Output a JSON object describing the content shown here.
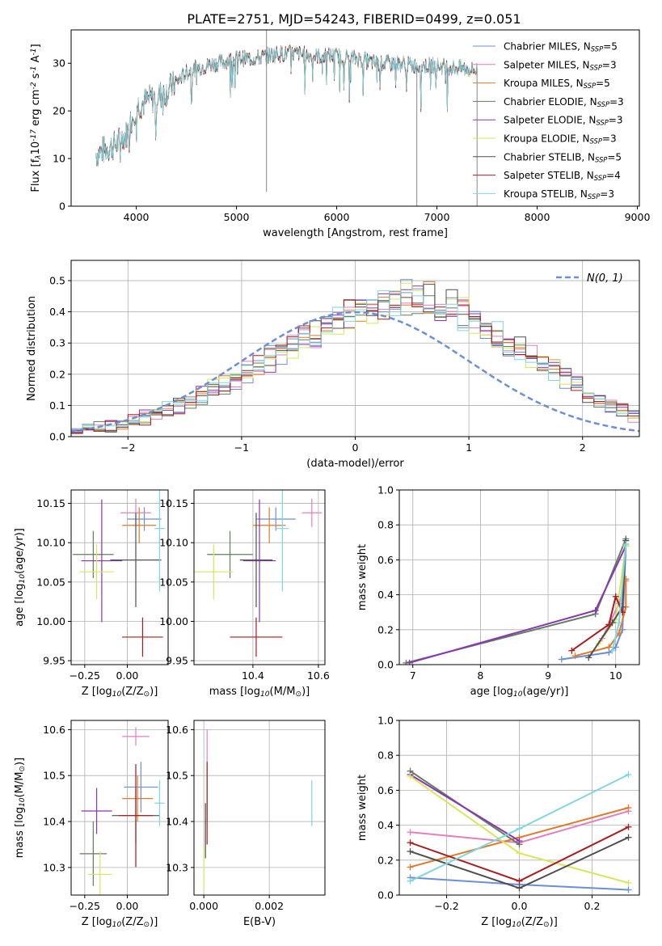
{
  "figure_title": "PLATE=2751, MJD=54243, FIBERID=0499, z=0.051",
  "legend_spectrum": [
    {
      "text": "Chabrier MILES, N$_{SSP}$=5",
      "color": "#6b8fd6"
    },
    {
      "text": "Salpeter MILES, N$_{SSP}$=3",
      "color": "#e37fbf"
    },
    {
      "text": "Kroupa MILES, N$_{SSP}$=5",
      "color": "#e07a2a"
    },
    {
      "text": "Chabrier ELODIE, N$_{SSP}$=3",
      "color": "#5f7f5f"
    },
    {
      "text": "Salpeter ELODIE, N$_{SSP}$=3",
      "color": "#8b35b5"
    },
    {
      "text": "Kroupa ELODIE, N$_{SSP}$=3",
      "color": "#d8e65a"
    },
    {
      "text": "Chabrier STELIB, N$_{SSP}$=5",
      "color": "#4f4f4f"
    },
    {
      "text": "Salpeter STELIB, N$_{SSP}$=4",
      "color": "#a81c1c"
    },
    {
      "text": "Kroupa STELIB, N$_{SSP}$=3",
      "color": "#7fd6e0"
    }
  ],
  "colors": {
    "series": [
      "#6b8fd6",
      "#e37fbf",
      "#e07a2a",
      "#5f7f5f",
      "#8b35b5",
      "#d8e65a",
      "#4f4f4f",
      "#a81c1c",
      "#7fd6e0"
    ],
    "grid": "#b0b0b0",
    "normal_curve": "#6b8fd6"
  },
  "chart_data": [
    {
      "id": "spectrum",
      "type": "line",
      "title": "PLATE=2751, MJD=54243, FIBERID=0499, z=0.051",
      "xlabel": "wavelength [Angstrom, rest frame]",
      "ylabel": "Flux [f$_\\lambda$10$^{-17}$ erg cm$^{-2}$ s$^{-1}$ A$^{-1}$]",
      "xlim": [
        3350,
        9020
      ],
      "ylim": [
        0,
        37
      ],
      "xticks": [
        4000,
        5000,
        6000,
        7000,
        8000,
        9000
      ],
      "yticks": [
        0,
        10,
        20,
        30
      ],
      "continuum": {
        "x": [
          3600,
          3700,
          3800,
          3900,
          4000,
          4100,
          4200,
          4300,
          4400,
          4500,
          4600,
          4800,
          5000,
          5200,
          5400,
          5600,
          5800,
          6000,
          6200,
          6400,
          6600,
          6800,
          7000,
          7200,
          7400
        ],
        "y": [
          11,
          12,
          13,
          15,
          21,
          22,
          23,
          24,
          26,
          28,
          29,
          30,
          31,
          31,
          32,
          32,
          31.5,
          31.5,
          31,
          30,
          30,
          29.5,
          29.5,
          29,
          28.5
        ]
      },
      "spikes": [
        {
          "x": 5300,
          "y": [
            3,
            37
          ]
        },
        {
          "x": 6800,
          "y": [
            0,
            29
          ]
        },
        {
          "x": 7400,
          "y": [
            0,
            29
          ]
        }
      ],
      "grid": false,
      "legend": "upper right"
    },
    {
      "id": "residual_hist",
      "type": "line",
      "xlabel": "(data-model)/error",
      "ylabel": "Normed distribution",
      "xlim": [
        -2.5,
        2.5
      ],
      "ylim": [
        0,
        0.565
      ],
      "xticks": [
        -2,
        -1,
        0,
        1,
        2
      ],
      "yticks": [
        0.0,
        0.1,
        0.2,
        0.3,
        0.4,
        0.5
      ],
      "bin_start": -2.5,
      "bin_width": 0.1,
      "base_hist": [
        0.02,
        0.025,
        0.03,
        0.035,
        0.04,
        0.05,
        0.06,
        0.07,
        0.09,
        0.1,
        0.11,
        0.13,
        0.15,
        0.17,
        0.19,
        0.21,
        0.23,
        0.25,
        0.27,
        0.29,
        0.31,
        0.33,
        0.35,
        0.37,
        0.39,
        0.4,
        0.41,
        0.42,
        0.43,
        0.44,
        0.44,
        0.43,
        0.42,
        0.41,
        0.4,
        0.38,
        0.35,
        0.32,
        0.3,
        0.28,
        0.26,
        0.24,
        0.22,
        0.19,
        0.17,
        0.14,
        0.12,
        0.1,
        0.08,
        0.07
      ],
      "normal_label": "$\\mathcal{N}(0, 1)$",
      "grid": true,
      "legend": "upper right"
    },
    {
      "id": "age_vs_Z",
      "type": "scatter",
      "xlabel": "Z [log$_{10}$(Z/Z$_\\odot$)]",
      "ylabel": "age  [log$_{10}$(age/yr)]",
      "xlim": [
        -0.33,
        0.24
      ],
      "ylim": [
        9.945,
        10.167
      ],
      "xticks": [
        -0.25,
        0.0
      ],
      "yticks": [
        9.95,
        10.0,
        10.05,
        10.1,
        10.15
      ],
      "points": [
        {
          "x": 0.1,
          "y": 10.13,
          "xerr": 0.1,
          "yerr": 0.015,
          "color": "#6b8fd6"
        },
        {
          "x": 0.05,
          "y": 10.138,
          "xerr": 0.09,
          "yerr": 0.018,
          "color": "#e37fbf"
        },
        {
          "x": 0.07,
          "y": 10.122,
          "xerr": 0.1,
          "yerr": 0.023,
          "color": "#e07a2a"
        },
        {
          "x": -0.2,
          "y": 10.085,
          "xerr": 0.12,
          "yerr": 0.03,
          "color": "#5f7f5f"
        },
        {
          "x": -0.15,
          "y": 10.077,
          "xerr": 0.12,
          "yerr": 0.078,
          "color": "#8b35b5"
        },
        {
          "x": -0.18,
          "y": 10.063,
          "xerr": 0.1,
          "yerr": 0.035,
          "color": "#d8e65a"
        },
        {
          "x": 0.05,
          "y": 10.078,
          "xerr": 0.15,
          "yerr": 0.06,
          "color": "#4f4f4f"
        },
        {
          "x": 0.09,
          "y": 9.98,
          "xerr": 0.12,
          "yerr": 0.025,
          "color": "#a81c1c"
        },
        {
          "x": 0.19,
          "y": 10.118,
          "xerr": 0.03,
          "yerr": 0.08,
          "color": "#7fd6e0"
        }
      ],
      "grid": true
    },
    {
      "id": "age_vs_mass",
      "type": "scatter",
      "xlabel": "mass [log$_{10}$(M/M$_\\odot$)]",
      "ylabel": "",
      "xlim": [
        10.22,
        10.62
      ],
      "ylim": [
        9.945,
        10.167
      ],
      "xticks": [
        10.4,
        10.6
      ],
      "yticks": [
        9.95,
        10.0,
        10.05,
        10.1,
        10.15
      ],
      "points": [
        {
          "x": 10.47,
          "y": 10.13,
          "xerr": 0.06,
          "yerr": 0.015,
          "color": "#6b8fd6"
        },
        {
          "x": 10.58,
          "y": 10.138,
          "xerr": 0.03,
          "yerr": 0.018,
          "color": "#e37fbf"
        },
        {
          "x": 10.45,
          "y": 10.122,
          "xerr": 0.05,
          "yerr": 0.023,
          "color": "#e07a2a"
        },
        {
          "x": 10.33,
          "y": 10.085,
          "xerr": 0.07,
          "yerr": 0.03,
          "color": "#5f7f5f"
        },
        {
          "x": 10.42,
          "y": 10.077,
          "xerr": 0.05,
          "yerr": 0.078,
          "color": "#8b35b5"
        },
        {
          "x": 10.28,
          "y": 10.063,
          "xerr": 0.06,
          "yerr": 0.035,
          "color": "#d8e65a"
        },
        {
          "x": 10.41,
          "y": 10.078,
          "xerr": 0.05,
          "yerr": 0.06,
          "color": "#4f4f4f"
        },
        {
          "x": 10.41,
          "y": 9.98,
          "xerr": 0.08,
          "yerr": 0.025,
          "color": "#a81c1c"
        },
        {
          "x": 10.49,
          "y": 10.118,
          "xerr": 0.02,
          "yerr": 0.08,
          "color": "#7fd6e0"
        }
      ],
      "grid": true
    },
    {
      "id": "massweight_vs_age",
      "type": "line",
      "xlabel": "age  [log$_{10}$(age/yr)]",
      "ylabel": "mass weight",
      "xlim": [
        6.8,
        10.35
      ],
      "ylim": [
        0.0,
        1.0
      ],
      "xticks": [
        7,
        8,
        9,
        10
      ],
      "yticks": [
        0.0,
        0.2,
        0.4,
        0.6,
        0.8,
        1.0
      ],
      "series": [
        {
          "color": "#6b8fd6",
          "x": [
            9.2,
            9.9,
            10.0,
            10.1,
            10.15
          ],
          "y": [
            0.03,
            0.07,
            0.1,
            0.2,
            0.69
          ]
        },
        {
          "color": "#e37fbf",
          "x": [
            9.8,
            10.05,
            10.15
          ],
          "y": [
            0.15,
            0.35,
            0.48
          ]
        },
        {
          "color": "#e07a2a",
          "x": [
            9.4,
            9.9,
            10.05,
            10.15,
            10.15
          ],
          "y": [
            0.05,
            0.1,
            0.18,
            0.33,
            0.49
          ]
        },
        {
          "color": "#5f7f5f",
          "x": [
            6.9,
            9.7,
            10.15
          ],
          "y": [
            0.01,
            0.29,
            0.72
          ]
        },
        {
          "color": "#8b35b5",
          "x": [
            6.95,
            9.7,
            10.15
          ],
          "y": [
            0.01,
            0.31,
            0.68
          ]
        },
        {
          "color": "#d8e65a",
          "x": [
            9.75,
            10.0,
            10.15
          ],
          "y": [
            0.12,
            0.26,
            0.68
          ]
        },
        {
          "color": "#4f4f4f",
          "x": [
            9.6,
            9.95,
            10.1,
            10.15
          ],
          "y": [
            0.04,
            0.24,
            0.33,
            0.71
          ]
        },
        {
          "color": "#a81c1c",
          "x": [
            9.35,
            9.9,
            10.0,
            10.1
          ],
          "y": [
            0.08,
            0.23,
            0.39,
            0.3
          ]
        },
        {
          "color": "#7fd6e0",
          "x": [
            9.95,
            10.05,
            10.15
          ],
          "y": [
            0.08,
            0.24,
            0.69
          ]
        }
      ],
      "grid": true
    },
    {
      "id": "mass_vs_Z",
      "type": "scatter",
      "xlabel": "Z [log$_{10}$(Z/Z$_\\odot$)]",
      "ylabel": "mass [log$_{10}$(M/M$_\\odot$)]",
      "xlim": [
        -0.33,
        0.24
      ],
      "ylim": [
        10.24,
        10.62
      ],
      "xticks": [
        -0.25,
        0.0
      ],
      "yticks": [
        10.3,
        10.4,
        10.5,
        10.6
      ],
      "points": [
        {
          "x": 0.08,
          "y": 10.475,
          "xerr": 0.1,
          "yerr": 0.055,
          "color": "#6b8fd6"
        },
        {
          "x": 0.05,
          "y": 10.585,
          "xerr": 0.08,
          "yerr": 0.02,
          "color": "#e37fbf"
        },
        {
          "x": 0.06,
          "y": 10.45,
          "xerr": 0.09,
          "yerr": 0.05,
          "color": "#e07a2a"
        },
        {
          "x": -0.2,
          "y": 10.33,
          "xerr": 0.08,
          "yerr": 0.07,
          "color": "#5f7f5f"
        },
        {
          "x": -0.18,
          "y": 10.423,
          "xerr": 0.09,
          "yerr": 0.05,
          "color": "#8b35b5"
        },
        {
          "x": -0.16,
          "y": 10.285,
          "xerr": 0.07,
          "yerr": 0.05,
          "color": "#d8e65a"
        },
        {
          "x": 0.05,
          "y": 10.413,
          "xerr": 0.14,
          "yerr": 0.06,
          "color": "#4f4f4f"
        },
        {
          "x": 0.05,
          "y": 10.413,
          "xerr": 0.1,
          "yerr": 0.112,
          "color": "#a81c1c"
        },
        {
          "x": 0.19,
          "y": 10.44,
          "xerr": 0.03,
          "yerr": 0.05,
          "color": "#7fd6e0"
        }
      ],
      "grid": true
    },
    {
      "id": "mass_vs_ebv",
      "type": "scatter",
      "xlabel": "E(B-V)",
      "ylabel": "",
      "xlim": [
        -0.0003,
        0.0037
      ],
      "ylim": [
        10.24,
        10.62
      ],
      "xticks": [
        0.0,
        0.002
      ],
      "xtick_labels": [
        "0.000",
        "0.002"
      ],
      "yticks": [
        10.3,
        10.4,
        10.5,
        10.6
      ],
      "points": [
        {
          "x": 0.0001,
          "y": 10.5,
          "xerr": 0,
          "yerr": 0.1,
          "color": "#e37fbf"
        },
        {
          "x": 0.0001,
          "y": 10.44,
          "xerr": 0,
          "yerr": 0.09,
          "color": "#a81c1c"
        },
        {
          "x": 5e-05,
          "y": 10.38,
          "xerr": 0,
          "yerr": 0.06,
          "color": "#4f4f4f"
        },
        {
          "x": 0.0,
          "y": 10.3,
          "xerr": 0,
          "yerr": 0.05,
          "color": "#d8e65a"
        },
        {
          "x": 0.0033,
          "y": 10.44,
          "xerr": 0,
          "yerr": 0.05,
          "color": "#7fd6e0"
        }
      ],
      "grid": true
    },
    {
      "id": "massweight_vs_Z",
      "type": "line",
      "xlabel": "Z [log$_{10}$(Z/Z$_\\odot$)]",
      "ylabel": "mass weight",
      "xlim": [
        -0.33,
        0.33
      ],
      "ylim": [
        0.0,
        1.0
      ],
      "xticks": [
        -0.2,
        0.0,
        0.2
      ],
      "yticks": [
        0.0,
        0.2,
        0.4,
        0.6,
        0.8,
        1.0
      ],
      "series": [
        {
          "color": "#6b8fd6",
          "x": [
            -0.3,
            0.0,
            0.3
          ],
          "y": [
            0.1,
            0.06,
            0.03
          ]
        },
        {
          "color": "#e37fbf",
          "x": [
            -0.3,
            0.0,
            0.3
          ],
          "y": [
            0.36,
            0.3,
            0.48
          ]
        },
        {
          "color": "#e07a2a",
          "x": [
            -0.3,
            0.0,
            0.3
          ],
          "y": [
            0.16,
            0.33,
            0.5
          ]
        },
        {
          "color": "#5f7f5f",
          "x": [
            -0.3,
            0.0
          ],
          "y": [
            0.71,
            0.29
          ]
        },
        {
          "color": "#8b35b5",
          "x": [
            -0.3,
            0.0
          ],
          "y": [
            0.69,
            0.31
          ]
        },
        {
          "color": "#d8e65a",
          "x": [
            -0.3,
            0.0,
            0.3
          ],
          "y": [
            0.68,
            0.24,
            0.07
          ]
        },
        {
          "color": "#4f4f4f",
          "x": [
            -0.3,
            0.0,
            0.3
          ],
          "y": [
            0.25,
            0.04,
            0.33
          ]
        },
        {
          "color": "#a81c1c",
          "x": [
            -0.3,
            0.0,
            0.3
          ],
          "y": [
            0.3,
            0.08,
            0.39
          ]
        },
        {
          "color": "#7fd6e0",
          "x": [
            -0.3,
            0.0,
            0.3
          ],
          "y": [
            0.08,
            0.38,
            0.69
          ]
        }
      ],
      "grid": true
    }
  ]
}
